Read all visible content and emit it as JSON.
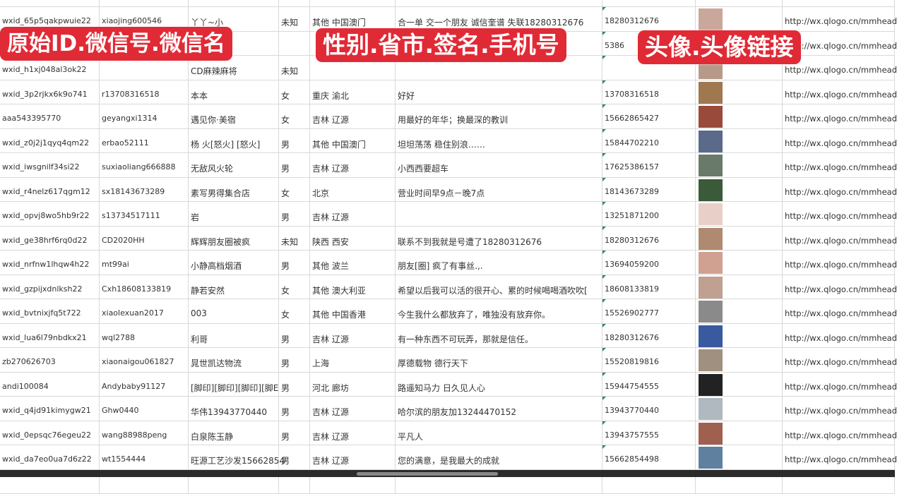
{
  "overlay_labels": [
    "原始ID.微信号.微信名",
    "性别.省市.签名.手机号",
    "头像.头像链接"
  ],
  "avatar_colors": [
    "#c9a79a",
    "#8a7a9a",
    "#b59a8a",
    "#a07850",
    "#9a4a3a",
    "#5a6a8a",
    "#6a7a6a",
    "#3a5a3a",
    "#e8d0c8",
    "#b08a70",
    "#d0a090",
    "#c0a090",
    "#8a8a8a",
    "#3a5aa0",
    "#a09080",
    "#222222",
    "#b0b8c0",
    "#a06050",
    "#6080a0"
  ],
  "rows": [
    {
      "orig_id": "",
      "wechat_id": "",
      "name": "",
      "gender": "",
      "region": "",
      "signature": "",
      "phone": "",
      "link": ""
    },
    {
      "orig_id": "wxid_65p5qakpwuie22",
      "wechat_id": "xiaojing600546",
      "name": "丫丫~小",
      "gender": "未知",
      "region": "其他 中国澳门",
      "signature": "合一单 交一个朋友 诚信奎谱 失联18280312676",
      "phone": "18280312676",
      "link": "http://wx.qlogo.cn/mmhead"
    },
    {
      "orig_id": "",
      "wechat_id": "",
      "name": "",
      "gender": "",
      "region": "",
      "signature": "",
      "phone": "5386",
      "link": "http://wx.qlogo.cn/mmhead"
    },
    {
      "orig_id": "wxid_h1xj048al3ok22",
      "wechat_id": "",
      "name": "CD麻辣麻将",
      "gender": "未知",
      "region": "",
      "signature": "",
      "phone": "",
      "link": "http://wx.qlogo.cn/mmhead"
    },
    {
      "orig_id": "wxid_3p2rjkx6k9o741",
      "wechat_id": "r13708316518",
      "name": "本本",
      "gender": "女",
      "region": "重庆 渝北",
      "signature": "好好",
      "phone": "13708316518",
      "link": "http://wx.qlogo.cn/mmhead"
    },
    {
      "orig_id": "aaa543395770",
      "wechat_id": "geyangxi1314",
      "name": "遇见你·美宿",
      "gender": "女",
      "region": "吉林 辽源",
      "signature": "用最好的年华；换最深的教训",
      "phone": "15662865427",
      "link": "http://wx.qlogo.cn/mmhead"
    },
    {
      "orig_id": "wxid_z0j2j1qyq4qm22",
      "wechat_id": "erbao52111",
      "name": "杨 火[怒火] [怒火]",
      "gender": "男",
      "region": "其他 中国澳门",
      "signature": "坦坦荡荡 稳住别浪……",
      "phone": "15844702210",
      "link": "http://wx.qlogo.cn/mmhead"
    },
    {
      "orig_id": "wxid_iwsgnilf34si22",
      "wechat_id": "suxiaoliang666888",
      "name": "无敌风火轮",
      "gender": "男",
      "region": "吉林 辽源",
      "signature": "小西西要超车",
      "phone": "17625386157",
      "link": "http://wx.qlogo.cn/mmhead"
    },
    {
      "orig_id": "wxid_r4nelz617qgm12",
      "wechat_id": "sx18143673289",
      "name": "素写男得集合店",
      "gender": "女",
      "region": "北京",
      "signature": "营业时间早9点－晚7点",
      "phone": "18143673289",
      "link": "http://wx.qlogo.cn/mmhead"
    },
    {
      "orig_id": "wxid_opvj8wo5hb9r22",
      "wechat_id": "s13734517111",
      "name": "岩",
      "gender": "男",
      "region": "吉林 辽源",
      "signature": "",
      "phone": "13251871200",
      "link": "http://wx.qlogo.cn/mmhead"
    },
    {
      "orig_id": "wxid_ge38hrf6rq0d22",
      "wechat_id": "CD2020HH",
      "name": "辉辉朋友圈被疯",
      "gender": "未知",
      "region": "陕西 西安",
      "signature": "联系不到我就是号遭了18280312676",
      "phone": "18280312676",
      "link": "http://wx.qlogo.cn/mmhead"
    },
    {
      "orig_id": "wxid_nrfnw1lhqw4h22",
      "wechat_id": "mt99ai",
      "name": "小静高档烟酒",
      "gender": "男",
      "region": "其他 波兰",
      "signature": "朋友[圈] 疯了有事丝.,.",
      "phone": "13694059200",
      "link": "http://wx.qlogo.cn/mmhead"
    },
    {
      "orig_id": "wxid_gzpijxdnlksh22",
      "wechat_id": "Cxh18608133819",
      "name": "静若安然",
      "gender": "女",
      "region": "其他 澳大利亚",
      "signature": "希望以后我可以活的很开心、累的时候喝喝酒吹吹[",
      "phone": "18608133819",
      "link": "http://wx.qlogo.cn/mmhead"
    },
    {
      "orig_id": "wxid_bvtnixjfq5t722",
      "wechat_id": "xiaolexuan2017",
      "name": "003",
      "gender": "女",
      "region": "其他 中国香港",
      "signature": "今生我什么都放弃了，唯独没有放弃你。",
      "phone": "15526902777",
      "link": "http://wx.qlogo.cn/mmhead"
    },
    {
      "orig_id": "wxid_lua6l79nbdkx21",
      "wechat_id": "wql2788",
      "name": "利哥",
      "gender": "男",
      "region": "吉林 辽源",
      "signature": "有一种东西不可玩弄，那就是信任。",
      "phone": "18280312676",
      "link": "http://wx.qlogo.cn/mmhead"
    },
    {
      "orig_id": "zb270626703",
      "wechat_id": "xiaonaigou061827",
      "name": "晁世凯达物流",
      "gender": "男",
      "region": "上海",
      "signature": "厚德载物 德行天下",
      "phone": "15520819816",
      "link": "http://wx.qlogo.cn/mmhead"
    },
    {
      "orig_id": "andi100084",
      "wechat_id": "Andybaby91127",
      "name": "[脚印][脚印][脚印][脚E",
      "gender": "男",
      "region": "河北 廊坊",
      "signature": "路遥知马力 日久见人心",
      "phone": "15944754555",
      "link": "http://wx.qlogo.cn/mmhead"
    },
    {
      "orig_id": "wxid_q4jd91kimygw21",
      "wechat_id": "Ghw0440",
      "name": "华伟13943770440",
      "gender": "男",
      "region": "吉林 辽源",
      "signature": "哈尔滨的朋友加13244470152",
      "phone": "13943770440",
      "link": "http://wx.qlogo.cn/mmhead"
    },
    {
      "orig_id": "wxid_0epsqc76egeu22",
      "wechat_id": "wang88988peng",
      "name": "白泉陈玉静",
      "gender": "男",
      "region": "吉林 辽源",
      "signature": "平凡人",
      "phone": "13943757555",
      "link": "http://wx.qlogo.cn/mmhead"
    },
    {
      "orig_id": "wxid_da7eo0ua7d6z22",
      "wechat_id": "wt1554444",
      "name": "旺源工艺沙发15662854",
      "gender": "男",
      "region": "吉林 辽源",
      "signature": "您的满意，是我最大的成就",
      "phone": "15662854498",
      "link": "http://wx.qlogo.cn/mmhead"
    },
    {
      "orig_id": "",
      "wechat_id": "",
      "name": "",
      "gender": "",
      "region": "",
      "signature": "",
      "phone": "",
      "link": ""
    }
  ]
}
